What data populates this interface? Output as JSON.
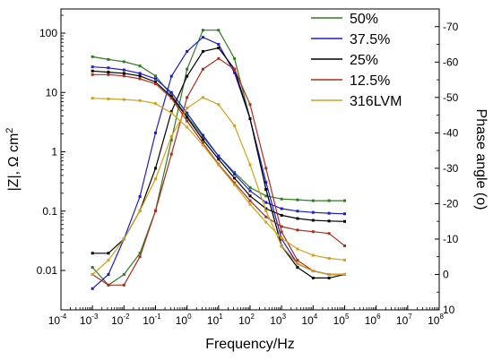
{
  "chart_data": {
    "type": "line",
    "xlabel": "Frequency/Hz",
    "xlim_log10": [
      -4,
      8
    ],
    "x_tick_exponents": [
      -4,
      -3,
      -2,
      -1,
      0,
      1,
      2,
      3,
      4,
      5,
      6,
      7,
      8
    ],
    "left_axis": {
      "label": "|Z|, Ω cm",
      "label_superscript": "2",
      "scale": "log",
      "ticks": [
        {
          "value": 0.01,
          "label": "0.01"
        },
        {
          "value": 0.1,
          "label": "0.1"
        },
        {
          "value": 1,
          "label": "1"
        },
        {
          "value": 10,
          "label": "10"
        },
        {
          "value": 100,
          "label": "100"
        }
      ]
    },
    "right_axis": {
      "label": "Phase angle (o)",
      "scale": "linear",
      "ylim": [
        10,
        -75
      ],
      "ticks": [
        {
          "value": 10,
          "label": "10"
        },
        {
          "value": 0,
          "label": "0"
        },
        {
          "value": -10,
          "label": "-10"
        },
        {
          "value": -20,
          "label": "-20"
        },
        {
          "value": -30,
          "label": "-30"
        },
        {
          "value": -40,
          "label": "-40"
        },
        {
          "value": -50,
          "label": "-50"
        },
        {
          "value": -60,
          "label": "-60"
        },
        {
          "value": -70,
          "label": "-70"
        }
      ]
    },
    "legend_position": "top-right",
    "x": [
      0.001,
      0.0032,
      0.01,
      0.032,
      0.1,
      0.32,
      1,
      3.2,
      10,
      32,
      100,
      320,
      1000,
      3200,
      10000,
      32000,
      100000
    ],
    "series": [
      {
        "name": "50%",
        "color": "#2e7d1f",
        "z": [
          40,
          36,
          33,
          28,
          19,
          9,
          4,
          1.8,
          0.85,
          0.45,
          0.25,
          0.18,
          0.16,
          0.155,
          0.15,
          0.15,
          0.15
        ],
        "phase": [
          -2,
          3,
          0,
          -6,
          -18,
          -38,
          -58,
          -69,
          -69,
          -61,
          -44,
          -24,
          -8,
          -3,
          -1,
          0,
          0
        ]
      },
      {
        "name": "37.5%",
        "color": "#1a1ad8",
        "z": [
          27,
          26,
          24,
          21,
          17,
          10,
          4.5,
          1.9,
          0.85,
          0.42,
          0.22,
          0.14,
          0.11,
          0.1,
          0.095,
          0.092,
          0.09
        ],
        "phase": [
          4,
          0,
          -10,
          -22,
          -40,
          -56,
          -63,
          -67,
          -65,
          -57,
          -44,
          -26,
          -10,
          -3,
          -1,
          0,
          0
        ]
      },
      {
        "name": "25%",
        "color": "#000000",
        "z": [
          23,
          22,
          21,
          19,
          15,
          8.5,
          3.8,
          1.6,
          0.75,
          0.36,
          0.18,
          0.11,
          0.085,
          0.075,
          0.07,
          0.068,
          0.067
        ],
        "phase": [
          -6,
          -6,
          -10,
          -18,
          -30,
          -46,
          -56,
          -63,
          -64,
          -58,
          -44,
          -24,
          -8,
          -2,
          1,
          1,
          0
        ]
      },
      {
        "name": "12.5%",
        "color": "#b52a1a",
        "z": [
          20,
          20,
          19,
          17,
          14,
          8,
          3.3,
          1.4,
          0.62,
          0.3,
          0.15,
          0.08,
          0.055,
          0.048,
          0.045,
          0.042,
          0.026
        ],
        "phase": [
          0,
          3,
          3,
          -5,
          -18,
          -34,
          -50,
          -58,
          -61,
          -58,
          -48,
          -30,
          -12,
          -4,
          -1,
          0,
          0
        ]
      },
      {
        "name": "316LVM",
        "color": "#d4a016",
        "z": [
          8,
          7.8,
          7.6,
          7.3,
          6.5,
          4.5,
          2.6,
          1.3,
          0.6,
          0.28,
          0.13,
          0.065,
          0.035,
          0.023,
          0.018,
          0.016,
          0.015
        ],
        "phase": [
          0,
          -4,
          -10,
          -18,
          -27,
          -39,
          -47,
          -50,
          -48,
          -42,
          -31,
          -18,
          -8,
          -3,
          -1,
          0,
          0
        ]
      }
    ]
  }
}
